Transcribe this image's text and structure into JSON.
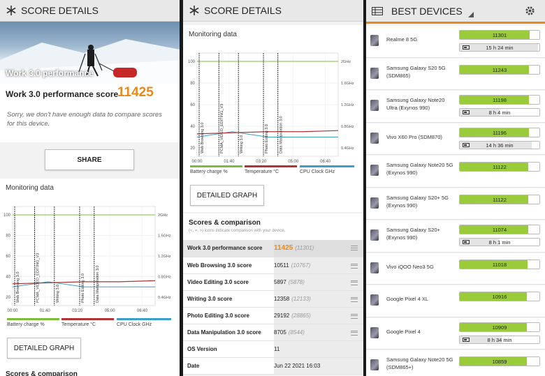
{
  "panel1": {
    "title": "SCORE DETAILS",
    "hero_text": "Work 3.0 performance",
    "score_label": "Work 3.0 performance score",
    "score_value": "11425",
    "sorry_text": "Sorry, we don't have enough data to compare scores for this device.",
    "share_label": "SHARE",
    "monitoring_title": "Monitoring data",
    "detailed_graph_label": "DETAILED GRAPH",
    "scores_comparison_title": "Scores & comparison"
  },
  "panel2": {
    "title": "SCORE DETAILS",
    "monitoring_title": "Monitoring data",
    "detailed_graph_label": "DETAILED GRAPH",
    "scores_comparison_title": "Scores & comparison",
    "comparison_hint": "(<, =, >) icons indicate comparison with your device.",
    "rows": [
      {
        "name": "Work 3.0 performance score",
        "value": "11425",
        "ref": "(11301)",
        "highlight": true
      },
      {
        "name": "Web Browsing 3.0 score",
        "value": "10511",
        "ref": "(10767)",
        "highlight": false
      },
      {
        "name": "Video Editing 3.0 score",
        "value": "5897",
        "ref": "(5878)",
        "highlight": false
      },
      {
        "name": "Writing 3.0 score",
        "value": "12358",
        "ref": "(12133)",
        "highlight": false
      },
      {
        "name": "Photo Editing 3.0 score",
        "value": "29192",
        "ref": "(28865)",
        "highlight": false
      },
      {
        "name": "Data Manipulation 3.0 score",
        "value": "8705",
        "ref": "(8544)",
        "highlight": false
      },
      {
        "name": "OS Version",
        "value": "11",
        "ref": "",
        "highlight": false
      },
      {
        "name": "Date",
        "value": "Jun 22 2021 16:03",
        "ref": "",
        "highlight": false
      }
    ]
  },
  "chart_data": {
    "type": "line",
    "y_left_ticks": [
      "100",
      "80",
      "60",
      "40",
      "20"
    ],
    "y_right_ticks": [
      "2GHz",
      "1.6GHz",
      "1.2GHz",
      "0.8GHz",
      "0.4GHz"
    ],
    "x_ticks": [
      "00:00",
      "01:40",
      "03:20",
      "05:00",
      "06:40"
    ],
    "segments": [
      "Web Browsing 3.0",
      "PCMA_VIDEO_EDITING_V3",
      "Writing 3.0",
      "Photo Editing 3.0",
      "Data Manipulation 3.0"
    ],
    "segment_starts": [
      0,
      68,
      129,
      207,
      252
    ],
    "series": [
      {
        "name": "Battery charge %",
        "color": "#7cbd3a",
        "values": [
          100,
          100,
          100,
          100,
          100
        ]
      },
      {
        "name": "Temperature °C",
        "color": "#b03434",
        "values": [
          33,
          34,
          35,
          35,
          36
        ]
      },
      {
        "name": "CPU Clock GHz",
        "color": "#3aa0c8",
        "values": [
          0.6,
          0.7,
          0.6,
          0.6,
          0.6
        ]
      }
    ],
    "legend": [
      "Battery charge %",
      "Temperature °C",
      "CPU Clock GHz"
    ]
  },
  "panel3": {
    "title": "BEST DEVICES",
    "devices": [
      {
        "name": "Realme 8 5G",
        "score": "11301",
        "battery": "15 h 24 min",
        "score_frac": 1.0,
        "batt_frac": 0.98
      },
      {
        "name": "Samsung Galaxy S20 5G (SDM865)",
        "score": "11243",
        "battery": "",
        "score_frac": 0.99,
        "batt_frac": 0
      },
      {
        "name": "Samsung Galaxy Note20 Ultra (Exynos 990)",
        "score": "11198",
        "battery": "8 h 4 min",
        "score_frac": 0.99,
        "batt_frac": 0.5
      },
      {
        "name": "Vivo X60 Pro (SDM870)",
        "score": "11196",
        "battery": "14 h 36 min",
        "score_frac": 0.99,
        "batt_frac": 0.9
      },
      {
        "name": "Samsung Galaxy Note20 5G (Exynos 990)",
        "score": "11122",
        "battery": "",
        "score_frac": 0.98,
        "batt_frac": 0
      },
      {
        "name": "Samsung Galaxy S20+ 5G (Exynos 990)",
        "score": "11122",
        "battery": "",
        "score_frac": 0.98,
        "batt_frac": 0
      },
      {
        "name": "Samsung Galaxy S20+ (Exynos 990)",
        "score": "11074",
        "battery": "8 h 1 min",
        "score_frac": 0.98,
        "batt_frac": 0.5
      },
      {
        "name": "Vivo iQOO Neo3 5G",
        "score": "11018",
        "battery": "",
        "score_frac": 0.97,
        "batt_frac": 0
      },
      {
        "name": "Google Pixel 4 XL",
        "score": "10916",
        "battery": "",
        "score_frac": 0.96,
        "batt_frac": 0
      },
      {
        "name": "Google Pixel 4",
        "score": "10909",
        "battery": "8 h 34 min",
        "score_frac": 0.96,
        "batt_frac": 0.53
      },
      {
        "name": "Samsung Galaxy Note20 5G (SDM865+)",
        "score": "10859",
        "battery": "",
        "score_frac": 0.96,
        "batt_frac": 0
      }
    ]
  }
}
